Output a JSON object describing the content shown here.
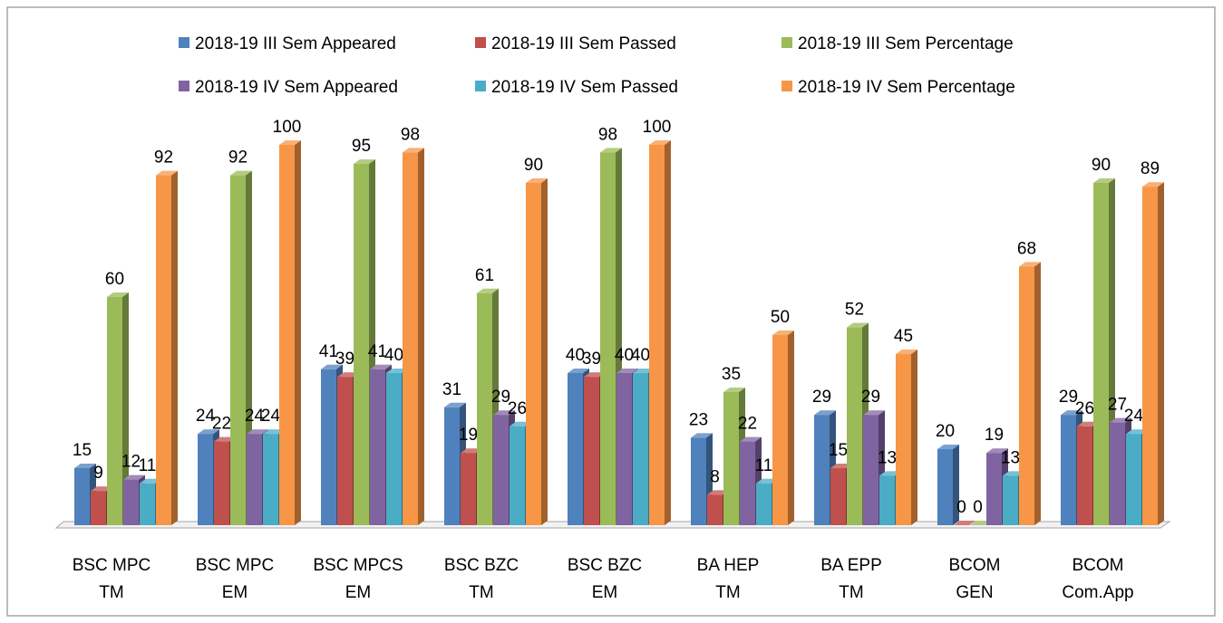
{
  "chart_data": {
    "type": "bar3d",
    "categories": [
      "BSC MPC TM",
      "BSC MPC EM",
      "BSC MPCS EM",
      "BSC BZC TM",
      "BSC BZC EM",
      "BA HEP TM",
      "BA EPP TM",
      "BCOM GEN",
      "BCOM Com.App"
    ],
    "series": [
      {
        "name": "2018-19 III Sem Appeared",
        "color": "#4f81bd",
        "values": [
          15,
          24,
          41,
          31,
          40,
          23,
          29,
          20,
          29
        ]
      },
      {
        "name": "2018-19 III Sem Passed",
        "color": "#c0504d",
        "values": [
          9,
          22,
          39,
          19,
          39,
          8,
          15,
          0,
          26
        ]
      },
      {
        "name": "2018-19 III Sem Percentage",
        "color": "#9bbb59",
        "values": [
          60,
          92,
          95,
          61,
          98,
          35,
          52,
          0,
          90
        ]
      },
      {
        "name": "2018-19 IV Sem Appeared",
        "color": "#8064a2",
        "values": [
          12,
          24,
          41,
          29,
          40,
          22,
          29,
          19,
          27
        ]
      },
      {
        "name": "2018-19 IV Sem Passed",
        "color": "#4bacc6",
        "values": [
          11,
          24,
          40,
          26,
          40,
          11,
          13,
          13,
          24
        ]
      },
      {
        "name": "2018-19 IV Sem Percentage",
        "color": "#f79646",
        "values": [
          92,
          100,
          98,
          90,
          100,
          50,
          45,
          68,
          89
        ]
      }
    ],
    "legend": "top"
  }
}
